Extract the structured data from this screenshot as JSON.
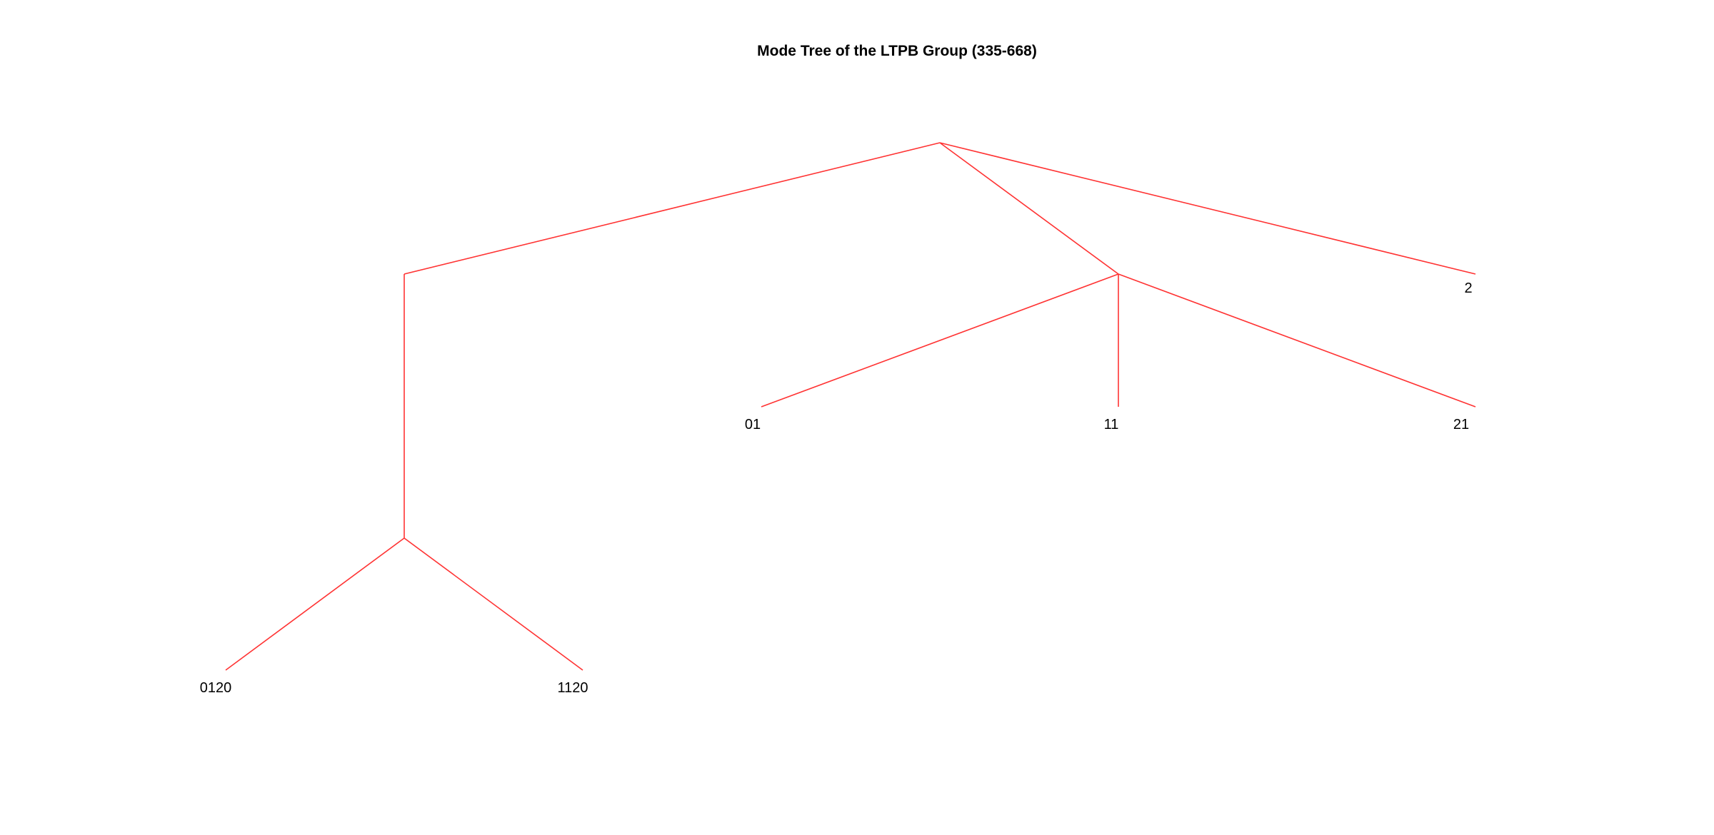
{
  "title": "Mode Tree of the LTPB Group (335-668)",
  "colors": {
    "edge": "#ff3333",
    "text": "#000000",
    "background": "#ffffff"
  },
  "tree": {
    "nodes": [
      {
        "id": "root",
        "label": ""
      },
      {
        "id": "n0",
        "label": ""
      },
      {
        "id": "n1",
        "label": ""
      },
      {
        "id": "n2",
        "label": "2"
      },
      {
        "id": "n01",
        "label": "01"
      },
      {
        "id": "n11",
        "label": "11"
      },
      {
        "id": "n21",
        "label": "21"
      },
      {
        "id": "n020",
        "label": ""
      },
      {
        "id": "n0120",
        "label": "0120"
      },
      {
        "id": "n1120",
        "label": "1120"
      }
    ],
    "edges": [
      [
        "root",
        "n0"
      ],
      [
        "root",
        "n1"
      ],
      [
        "root",
        "n2"
      ],
      [
        "n1",
        "n01"
      ],
      [
        "n1",
        "n11"
      ],
      [
        "n1",
        "n21"
      ],
      [
        "n0",
        "n020"
      ],
      [
        "n020",
        "n0120"
      ],
      [
        "n020",
        "n1120"
      ]
    ]
  }
}
